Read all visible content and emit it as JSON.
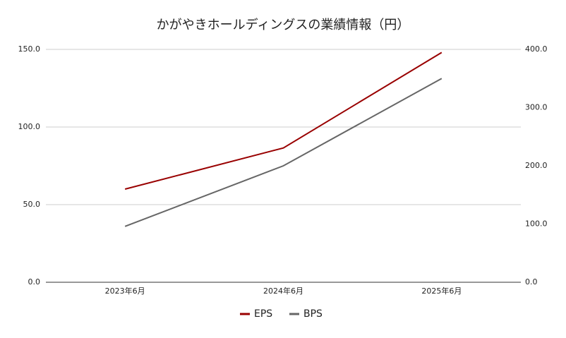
{
  "chart_data": {
    "type": "line",
    "title": "かがやきホールディングスの業績情報（円）",
    "categories": [
      "2023年6月",
      "2024年6月",
      "2025年6月"
    ],
    "series": [
      {
        "name": "EPS",
        "color": "#990000",
        "values": [
          60,
          86.5,
          148
        ]
      },
      {
        "name": "BPS",
        "color": "#666666",
        "values": [
          96,
          200,
          350
        ],
        "axis": "y2"
      }
    ],
    "ylim": [
      0,
      150
    ],
    "yticks": [
      {
        "value": 0,
        "label": "0.0"
      },
      {
        "value": 50,
        "label": "50.0"
      },
      {
        "value": 100,
        "label": "100.0"
      },
      {
        "value": 150,
        "label": "150.0"
      }
    ],
    "y2lim": [
      0,
      400
    ],
    "y2ticks": [
      {
        "value": 0,
        "label": "0.0"
      },
      {
        "value": 100,
        "label": "100.0"
      },
      {
        "value": 200,
        "label": "200.0"
      },
      {
        "value": 300,
        "label": "300.0"
      },
      {
        "value": 400,
        "label": "400.0"
      }
    ],
    "grid": true,
    "legend": "bottom"
  }
}
